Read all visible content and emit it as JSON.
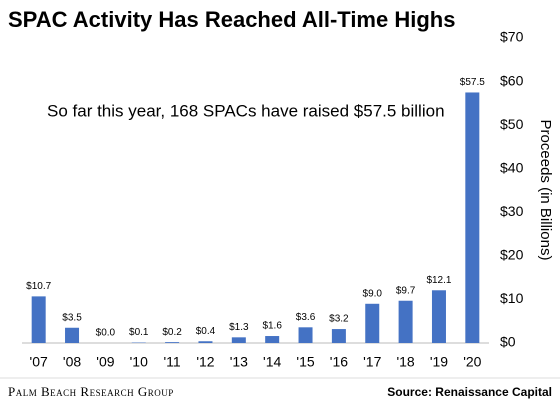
{
  "chart_data": {
    "type": "bar",
    "title": "SPAC Activity Has Reached All-Time Highs",
    "annotation": "So far this year, 168 SPACs have raised $57.5 billion",
    "y_axis_label": "Proceeds (in Billions)",
    "categories": [
      "'07",
      "'08",
      "'09",
      "'10",
      "'11",
      "'12",
      "'13",
      "'14",
      "'15",
      "'16",
      "'17",
      "'18",
      "'19",
      "'20"
    ],
    "values": [
      10.7,
      3.5,
      0.0,
      0.1,
      0.2,
      0.4,
      1.3,
      1.6,
      3.6,
      3.2,
      9.0,
      9.7,
      12.1,
      57.5
    ],
    "value_labels": [
      "$10.7",
      "$3.5",
      "$0.0",
      "$0.1",
      "$0.2",
      "$0.4",
      "$1.3",
      "$1.6",
      "$3.6",
      "$3.2",
      "$9.0",
      "$9.7",
      "$12.1",
      "$57.5"
    ],
    "color": "#4472c4",
    "ylim": [
      0,
      70
    ],
    "yticks": [
      {
        "value": 0,
        "label": "$0"
      },
      {
        "value": 10,
        "label": "$10"
      },
      {
        "value": 20,
        "label": "$20"
      },
      {
        "value": 30,
        "label": "$30"
      },
      {
        "value": 40,
        "label": "$40"
      },
      {
        "value": 50,
        "label": "$50"
      },
      {
        "value": 60,
        "label": "$60"
      },
      {
        "value": 70,
        "label": "$70"
      }
    ],
    "y_axis_side": "right",
    "grid": false,
    "footer_left": "Palm Beach Research Group",
    "source": "Source: Renaissance Capital"
  }
}
